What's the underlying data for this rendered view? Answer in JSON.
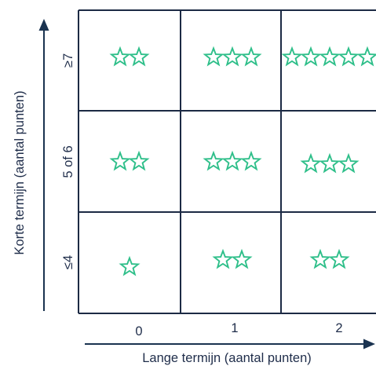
{
  "chart_data": {
    "type": "table",
    "y_axis_title": "Korte termijn (aantal punten)",
    "x_axis_title": "Lange termijn (aantal punten)",
    "rows": [
      "≥7",
      "5 of 6",
      "≤4"
    ],
    "columns": [
      "0",
      "1",
      "2"
    ],
    "stars": [
      [
        2,
        3,
        5
      ],
      [
        2,
        3,
        3
      ],
      [
        1,
        2,
        2
      ]
    ],
    "star_color": "#2fbf8a",
    "line_color": "#1c2a44",
    "star_icon": "star-outline-icon",
    "arrow_icon": "arrow-head-icon"
  }
}
